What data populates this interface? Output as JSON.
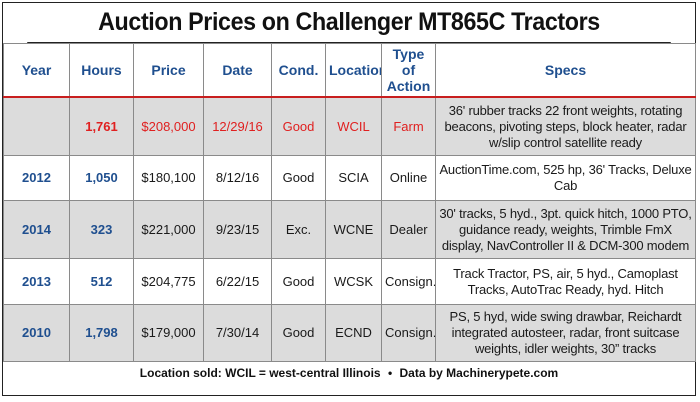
{
  "title": "Auction Prices on Challenger MT865C Tractors",
  "columns": [
    "Year",
    "Hours",
    "Price",
    "Date",
    "Cond.",
    "Location",
    "Type of Action",
    "Specs"
  ],
  "rows": [
    {
      "year": "",
      "hours": "1,761",
      "price": "$208,000",
      "date": "12/29/16",
      "cond": "Good",
      "location": "WCIL",
      "type": "Farm",
      "specs": "36' rubber tracks 22 front weights, rotating beacons, pivoting steps, block heater, radar w/slip control satellite ready"
    },
    {
      "year": "2012",
      "hours": "1,050",
      "price": "$180,100",
      "date": "8/12/16",
      "cond": "Good",
      "location": "SCIA",
      "type": "Online",
      "specs": "AuctionTime.com, 525 hp, 36' Tracks, Deluxe Cab"
    },
    {
      "year": "2014",
      "hours": "323",
      "price": "$221,000",
      "date": "9/23/15",
      "cond": "Exc.",
      "location": "WCNE",
      "type": "Dealer",
      "specs": "30' tracks, 5 hyd., 3pt. quick hitch, 1000 PTO, guidance ready, weights, Trimble FmX display, NavController II & DCM-300 modem"
    },
    {
      "year": "2013",
      "hours": "512",
      "price": "$204,775",
      "date": "6/22/15",
      "cond": "Good",
      "location": "WCSK",
      "type": "Consign.",
      "specs": "Track Tractor, PS, air, 5 hyd., Camoplast Tracks, AutoTrac Ready, hyd. Hitch"
    },
    {
      "year": "2010",
      "hours": "1,798",
      "price": "$179,000",
      "date": "7/30/14",
      "cond": "Good",
      "location": "ECND",
      "type": "Consign.",
      "specs": "PS, 5 hyd, wide swing drawbar, Reichardt integrated autosteer, radar, front suitcase weights, idler weights, 30” tracks"
    }
  ],
  "footer": {
    "location_note": "Location sold: WCIL = west-central Illinois",
    "separator": "•",
    "source": "Data by Machinerypete.com"
  },
  "colors": {
    "header_text": "#1f4f8f",
    "highlight": "#e02020",
    "rule": "#c81e1e",
    "shade": "#dcdcdc"
  }
}
